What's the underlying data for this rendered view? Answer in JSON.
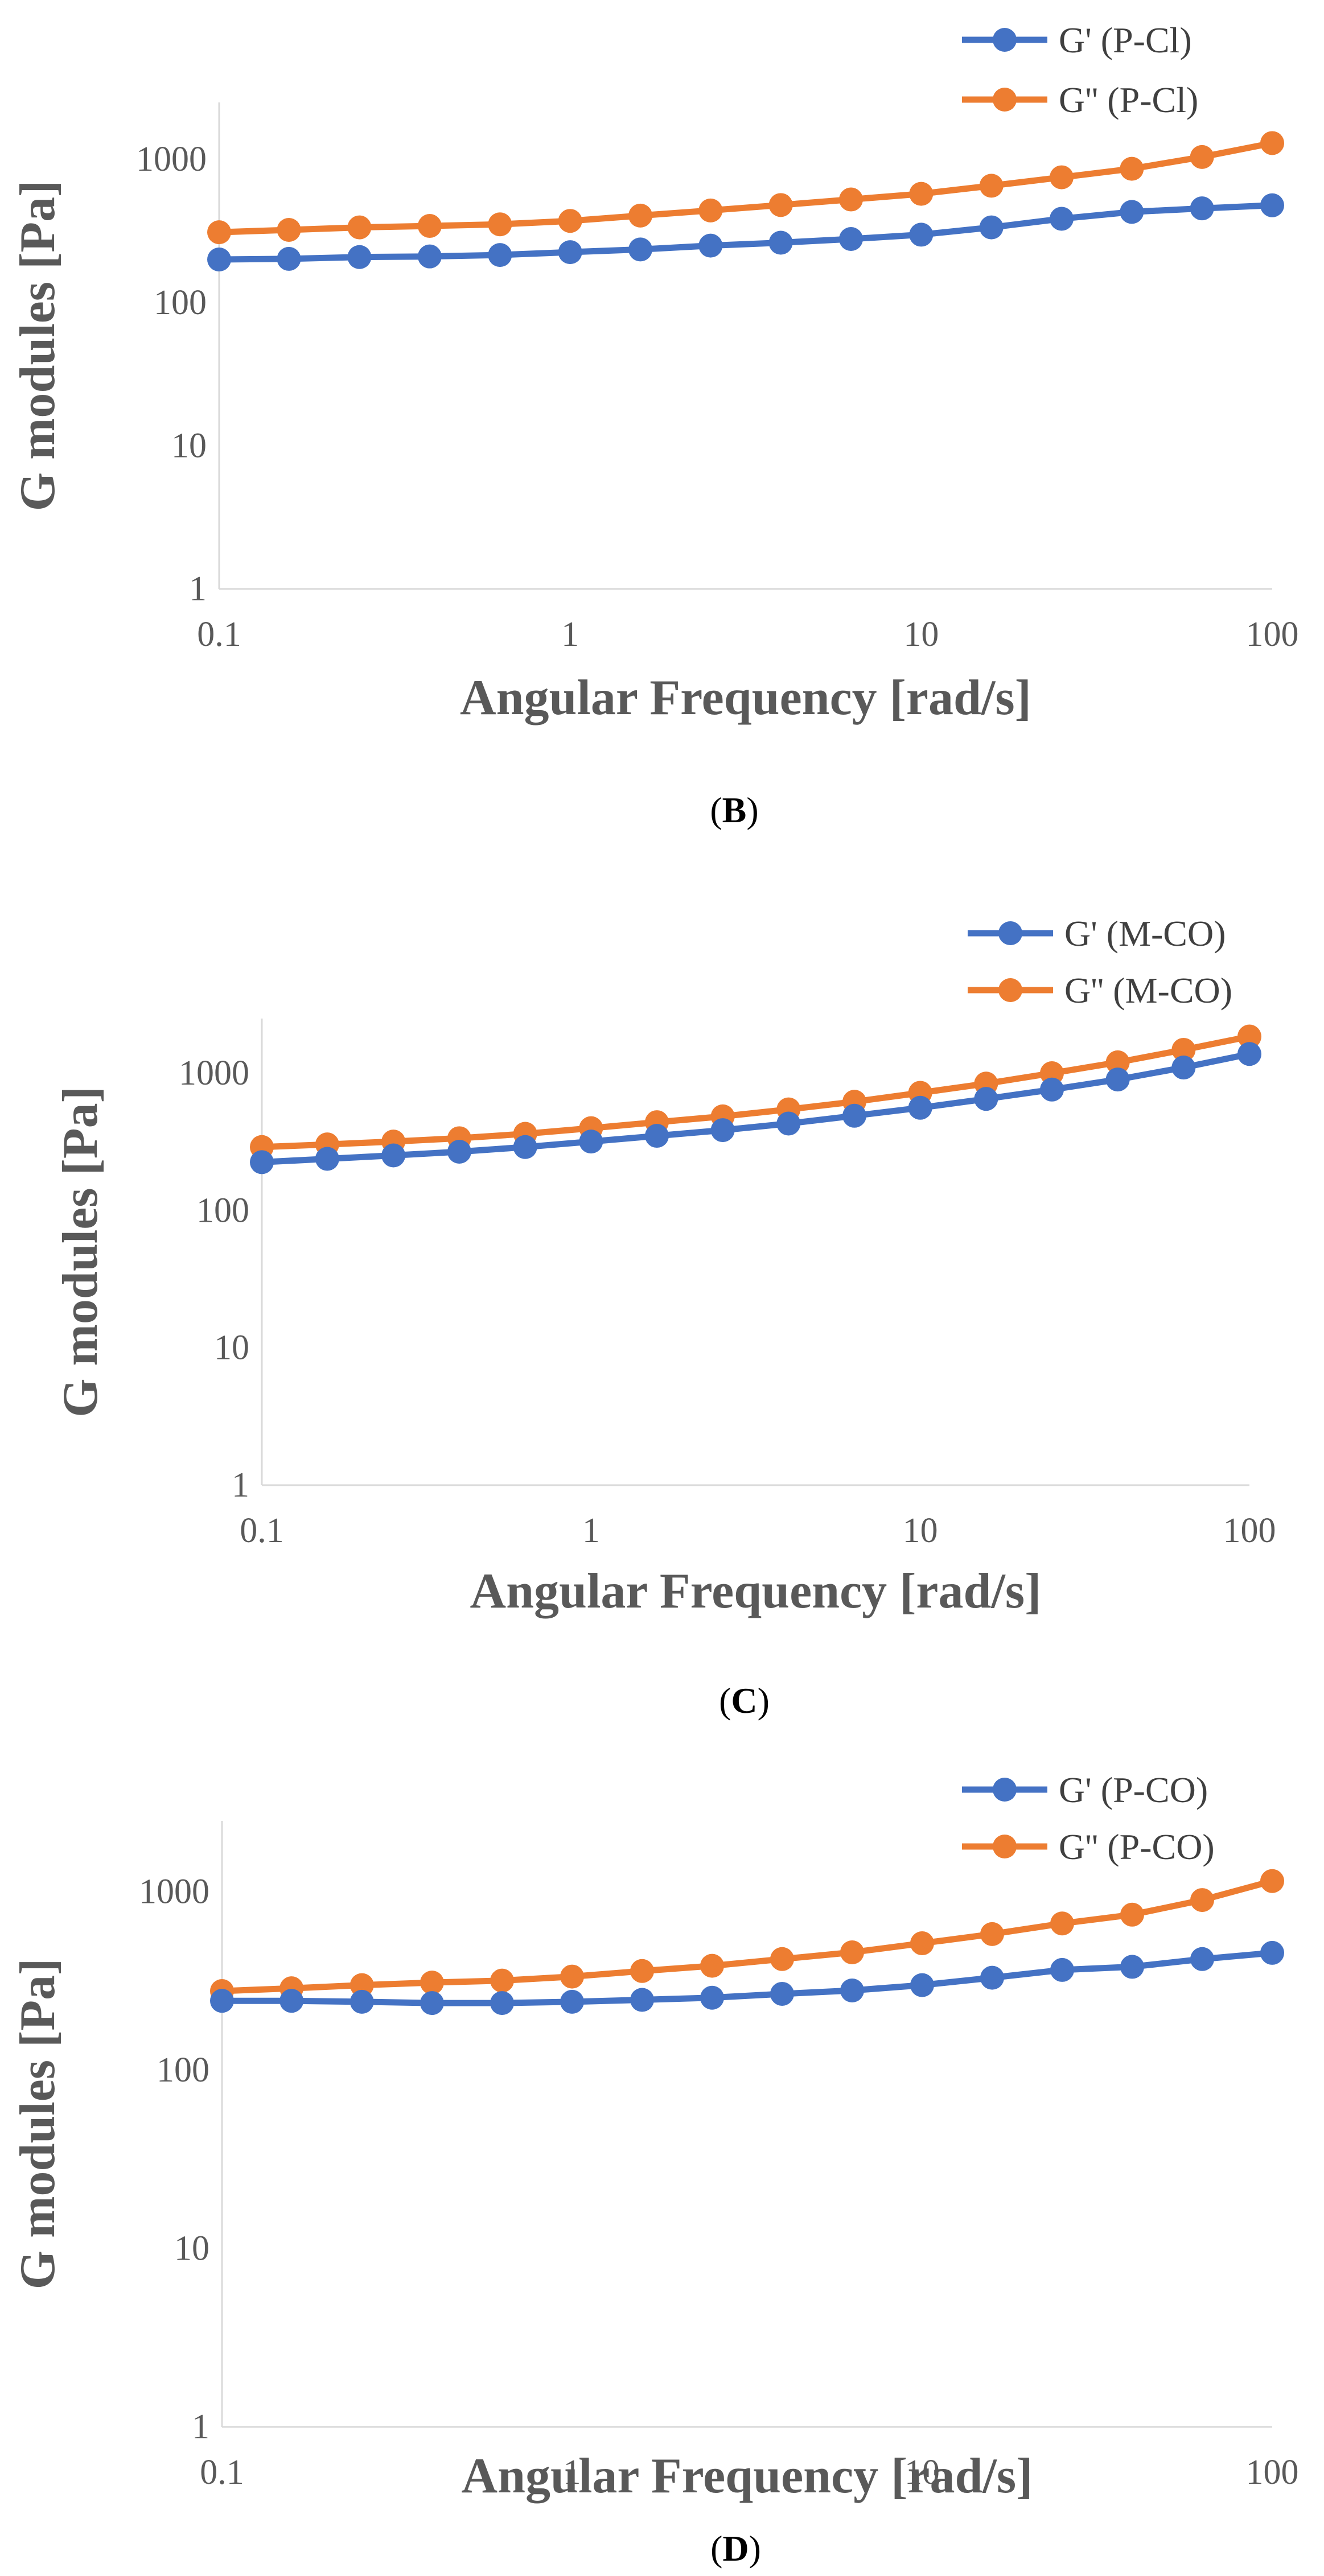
{
  "chart_data": [
    {
      "type": "line",
      "caption": "B",
      "xscale": "log",
      "yscale": "log",
      "xlabel": "Angular Frequency [rad/s]",
      "ylabel": "G modules [Pa]",
      "xlim": [
        0.1,
        100
      ],
      "ylim": [
        1,
        2500
      ],
      "xticks": [
        "0.1",
        "1",
        "10",
        "100"
      ],
      "yticks": [
        "1",
        "10",
        "100",
        "1000"
      ],
      "legend_position": "top-right",
      "x": [
        0.1,
        0.158,
        0.251,
        0.398,
        0.631,
        1,
        1.585,
        2.512,
        3.981,
        6.31,
        10,
        15.85,
        25.12,
        39.81,
        63.1,
        100
      ],
      "series": [
        {
          "name": "G' (P-Cl)",
          "color": "#4472c4",
          "values": [
            200,
            202,
            208,
            210,
            215,
            225,
            235,
            250,
            262,
            278,
            298,
            335,
            385,
            430,
            455,
            478
          ]
        },
        {
          "name": "G'' (P-Cl)",
          "color": "#ed7d31",
          "values": [
            310,
            322,
            335,
            343,
            352,
            372,
            405,
            440,
            480,
            525,
            575,
            655,
            750,
            860,
            1040,
            1300
          ]
        }
      ]
    },
    {
      "type": "line",
      "caption": "C",
      "xscale": "log",
      "yscale": "log",
      "xlabel": "Angular Frequency [rad/s]",
      "ylabel": "G modules [Pa]",
      "xlim": [
        0.1,
        100
      ],
      "ylim": [
        1,
        2500
      ],
      "xticks": [
        "0.1",
        "1",
        "10",
        "100"
      ],
      "yticks": [
        "1",
        "10",
        "100",
        "1000"
      ],
      "legend_position": "top-right",
      "x": [
        0.1,
        0.158,
        0.251,
        0.398,
        0.631,
        1,
        1.585,
        2.512,
        3.981,
        6.31,
        10,
        15.85,
        25.12,
        39.81,
        63.1,
        100
      ],
      "series": [
        {
          "name": "G' (M-CO)",
          "color": "#4472c4",
          "values": [
            225,
            238,
            252,
            268,
            290,
            318,
            350,
            385,
            430,
            490,
            560,
            650,
            760,
            900,
            1100,
            1380
          ]
        },
        {
          "name": "G'' (M-CO)",
          "color": "#ed7d31",
          "values": [
            290,
            303,
            318,
            336,
            362,
            398,
            440,
            485,
            545,
            620,
            720,
            840,
            1000,
            1200,
            1480,
            1850
          ]
        }
      ]
    },
    {
      "type": "line",
      "caption": "D",
      "xscale": "log",
      "yscale": "log",
      "xlabel": "Angular Frequency [rad/s]",
      "ylabel": "G modules [Pa]",
      "xlim": [
        0.1,
        100
      ],
      "ylim": [
        1,
        2500
      ],
      "xticks": [
        "0.1",
        "1",
        "10",
        "100"
      ],
      "yticks": [
        "1",
        "10",
        "100",
        "1000"
      ],
      "legend_position": "top-right",
      "x": [
        0.1,
        0.158,
        0.251,
        0.398,
        0.631,
        1,
        1.585,
        2.512,
        3.981,
        6.31,
        10,
        15.85,
        25.12,
        39.81,
        63.1,
        100
      ],
      "series": [
        {
          "name": "G' (P-CO)",
          "color": "#4472c4",
          "values": [
            245,
            245,
            242,
            238,
            238,
            242,
            248,
            255,
            268,
            280,
            300,
            330,
            365,
            380,
            420,
            455
          ]
        },
        {
          "name": "G'' (P-CO)",
          "color": "#ed7d31",
          "values": [
            278,
            288,
            300,
            310,
            318,
            335,
            360,
            385,
            420,
            458,
            515,
            580,
            665,
            745,
            900,
            1150
          ]
        }
      ]
    }
  ]
}
